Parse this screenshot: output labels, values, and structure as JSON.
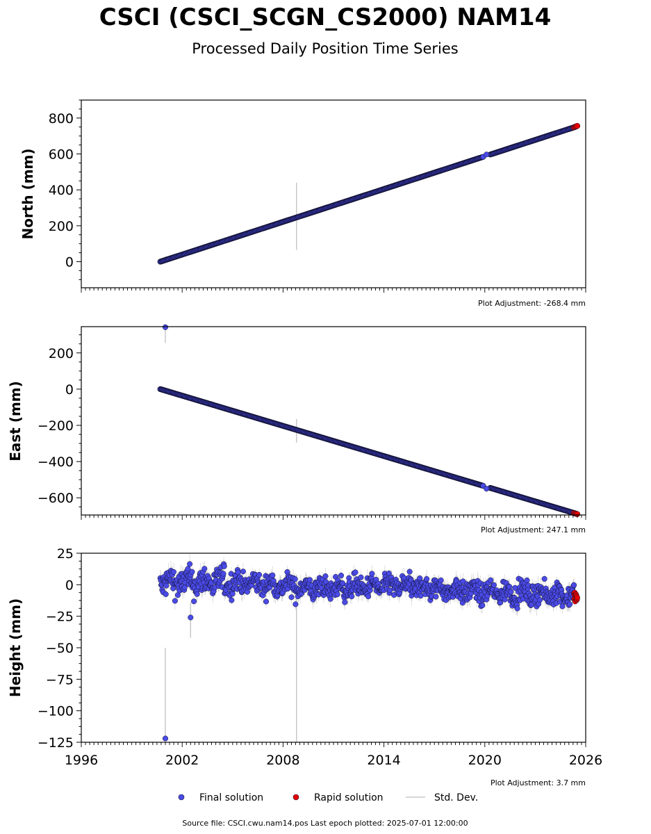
{
  "figure": {
    "title": "CSCI (CSCI_SCGN_CS2000) NAM14",
    "subtitle": "Processed Daily Position Time Series",
    "source": "Source file: CSCI.cwu.nam14.pos  Last epoch plotted: 2025-07-01 12:00:00"
  },
  "legend": {
    "final_label": "Final solution",
    "rapid_label": "Rapid solution",
    "std_label": "Std. Dev."
  },
  "colors": {
    "final": "#4a4ae6",
    "rapid": "#e60000",
    "std": "#c8c8c8",
    "edge": "#101030"
  },
  "chart_data": [
    {
      "type": "scatter",
      "name": "north",
      "ylabel": "North (mm)",
      "adjustment": "Plot Adjustment: -268.4 mm",
      "xlim": [
        1996,
        2026
      ],
      "ylim": [
        -145,
        900
      ],
      "yticks": [
        0,
        200,
        400,
        600,
        800
      ],
      "ytick_labels": [
        "0",
        "200",
        "400",
        "600",
        "800"
      ],
      "final": {
        "start": [
          2000.7,
          0
        ],
        "end": [
          2025.3,
          748
        ]
      },
      "rapid": {
        "start": [
          2025.3,
          748
        ],
        "end": [
          2025.5,
          756
        ]
      },
      "gap": {
        "from": 2019.9,
        "to": 2020.3,
        "point": [
          2020.1,
          597
        ]
      },
      "std_spikes": [
        {
          "x": 2008.8,
          "y1": 65,
          "y2": 440
        },
        {
          "x": 2001.0,
          "y1": 5,
          "y2": 30
        }
      ]
    },
    {
      "type": "scatter",
      "name": "east",
      "ylabel": "East (mm)",
      "adjustment": "Plot Adjustment: 247.1 mm",
      "xlim": [
        1996,
        2026
      ],
      "ylim": [
        -695,
        345
      ],
      "yticks": [
        -600,
        -400,
        -200,
        0,
        200
      ],
      "ytick_labels": [
        "−600",
        "−400",
        "−200",
        "0",
        "200"
      ],
      "final": {
        "start": [
          2000.7,
          0
        ],
        "end": [
          2025.3,
          -684
        ]
      },
      "rapid": {
        "start": [
          2025.3,
          -684
        ],
        "end": [
          2025.5,
          -690
        ]
      },
      "gap": {
        "from": 2019.9,
        "to": 2020.3,
        "point": [
          2020.1,
          -550
        ]
      },
      "outlier": [
        2001.0,
        342
      ],
      "std_spikes": [
        {
          "x": 2008.8,
          "y1": -295,
          "y2": -165
        },
        {
          "x": 2001.0,
          "y1": 255,
          "y2": 345
        }
      ]
    },
    {
      "type": "scatter",
      "name": "height",
      "ylabel": "Height (mm)",
      "adjustment": "Plot Adjustment: 3.7 mm",
      "xlim": [
        1996,
        2026
      ],
      "ylim": [
        -125,
        25
      ],
      "yticks": [
        -125,
        -100,
        -75,
        -50,
        -25,
        0,
        25
      ],
      "ytick_labels": [
        "−125",
        "−100",
        "−75",
        "−50",
        "−25",
        "0",
        "25"
      ],
      "xticks": [
        1996,
        2002,
        2008,
        2014,
        2020,
        2026
      ],
      "xtick_labels": [
        "1996",
        "2002",
        "2008",
        "2014",
        "2020",
        "2026"
      ],
      "final_range": [
        2000.7,
        2025.3
      ],
      "trend": [
        [
          2000.7,
          2
        ],
        [
          2005,
          2
        ],
        [
          2010,
          -3
        ],
        [
          2015,
          -1
        ],
        [
          2020,
          -6
        ],
        [
          2025.3,
          -8
        ]
      ],
      "rapid_range": [
        2025.3,
        2025.5
      ],
      "rapid_level": -10,
      "outliers": [
        [
          2001.0,
          -122
        ],
        [
          2002.5,
          -26
        ]
      ],
      "std_spikes": [
        {
          "x": 2008.8,
          "y1": -125,
          "y2": 8
        },
        {
          "x": 2001.0,
          "y1": -122,
          "y2": -50
        },
        {
          "x": 2002.5,
          "y1": -42,
          "y2": -14
        }
      ]
    }
  ]
}
